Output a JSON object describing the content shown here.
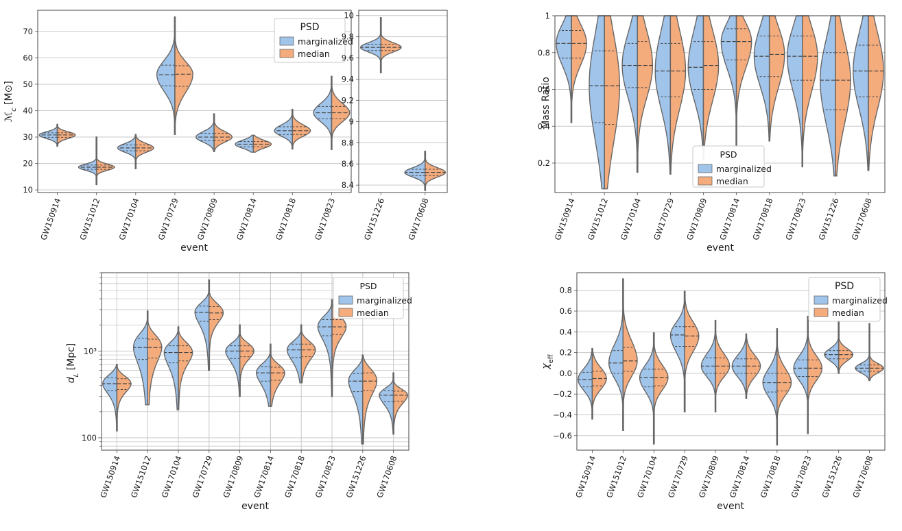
{
  "legend": {
    "title": "PSD",
    "entries": [
      "marginalized",
      "median"
    ]
  },
  "colors": {
    "marginalized": "#a1c4eb",
    "median": "#f5ac7d",
    "outline": "#666666",
    "grid": "#c8c8c8"
  },
  "events": [
    "GW150914",
    "GW151012",
    "GW170104",
    "GW170729",
    "GW170809",
    "GW170814",
    "GW170818",
    "GW170823",
    "GW151226",
    "GW170608"
  ],
  "chart_data": [
    {
      "id": "chirp-mass-heavy",
      "type": "violin",
      "ylabel": "Mc [M⊙]",
      "ylabel_main": "ℳ",
      "ylabel_sub": "c",
      "ylabel_unit": " [M⊙]",
      "ylim": [
        9,
        78
      ],
      "yticks": [
        10,
        20,
        30,
        40,
        50,
        60,
        70
      ],
      "categories": [
        "GW150914",
        "GW151012",
        "GW170104",
        "GW170729",
        "GW170809",
        "GW170814",
        "GW170818",
        "GW170823"
      ],
      "xlabel": "event",
      "series": [
        {
          "name": "marginalized",
          "median": [
            30.8,
            18.6,
            25.9,
            53.6,
            30.0,
            27.3,
            32.4,
            39.2
          ],
          "q25": [
            29.9,
            17.8,
            24.8,
            49.4,
            28.7,
            26.3,
            31.0,
            36.9
          ],
          "q75": [
            31.6,
            19.4,
            27.0,
            57.2,
            31.4,
            28.3,
            33.9,
            41.6
          ]
        },
        {
          "name": "median",
          "median": [
            30.8,
            18.6,
            25.9,
            53.8,
            30.0,
            27.3,
            32.4,
            39.2
          ],
          "q25": [
            29.9,
            17.8,
            24.8,
            49.2,
            28.7,
            26.3,
            31.0,
            36.9
          ],
          "q75": [
            31.6,
            19.4,
            27.0,
            57.0,
            31.4,
            28.3,
            33.9,
            41.6
          ]
        }
      ],
      "range": [
        [
          26.5,
          34.8
        ],
        [
          12.0,
          30.0
        ],
        [
          18.0,
          31.0
        ],
        [
          31.0,
          75.5
        ],
        [
          24.5,
          38.8
        ],
        [
          24.3,
          30.7
        ],
        [
          25.5,
          40.5
        ],
        [
          25.3,
          53.0
        ]
      ],
      "legend_position": "top-right"
    },
    {
      "id": "chirp-mass-light",
      "type": "violin",
      "ylim": [
        8.33,
        10.05
      ],
      "yticks": [
        8.4,
        8.6,
        8.8,
        9.0,
        9.2,
        9.4,
        9.6,
        9.8,
        10.0
      ],
      "categories": [
        "GW151226",
        "GW170608"
      ],
      "series": [
        {
          "name": "marginalized",
          "median": [
            9.7,
            8.52
          ],
          "q25": [
            9.67,
            8.49
          ],
          "q75": [
            9.73,
            8.55
          ]
        },
        {
          "name": "median",
          "median": [
            9.7,
            8.52
          ],
          "q25": [
            9.67,
            8.49
          ],
          "q75": [
            9.73,
            8.55
          ]
        }
      ],
      "range": [
        [
          9.46,
          9.98
        ],
        [
          8.35,
          8.72
        ]
      ]
    },
    {
      "id": "mass-ratio",
      "type": "violin",
      "ylabel": "Mass Ratio",
      "xlabel": "event",
      "ylim": [
        0.04,
        1.0
      ],
      "yticks": [
        0.2,
        0.4,
        0.6,
        0.8,
        1.0
      ],
      "categories": [
        "GW150914",
        "GW151012",
        "GW170104",
        "GW170729",
        "GW170809",
        "GW170814",
        "GW170818",
        "GW170823",
        "GW151226",
        "GW170608"
      ],
      "series": [
        {
          "name": "marginalized",
          "median": [
            0.85,
            0.62,
            0.73,
            0.7,
            0.72,
            0.86,
            0.78,
            0.78,
            0.65,
            0.7
          ],
          "q25": [
            0.77,
            0.42,
            0.61,
            0.56,
            0.6,
            0.76,
            0.67,
            0.65,
            0.49,
            0.56
          ],
          "q75": [
            0.92,
            0.81,
            0.85,
            0.85,
            0.86,
            0.93,
            0.89,
            0.89,
            0.8,
            0.84
          ]
        },
        {
          "name": "median",
          "median": [
            0.85,
            0.62,
            0.73,
            0.7,
            0.73,
            0.86,
            0.79,
            0.78,
            0.65,
            0.7
          ],
          "q25": [
            0.77,
            0.41,
            0.61,
            0.56,
            0.6,
            0.76,
            0.67,
            0.65,
            0.49,
            0.56
          ],
          "q75": [
            0.92,
            0.81,
            0.86,
            0.85,
            0.86,
            0.93,
            0.89,
            0.89,
            0.8,
            0.84
          ]
        }
      ],
      "range": [
        [
          0.42,
          1.0
        ],
        [
          0.06,
          1.0
        ],
        [
          0.15,
          1.0
        ],
        [
          0.14,
          1.0
        ],
        [
          0.22,
          1.0
        ],
        [
          0.29,
          1.0
        ],
        [
          0.32,
          1.0
        ],
        [
          0.18,
          1.0
        ],
        [
          0.13,
          1.0
        ],
        [
          0.16,
          1.0
        ]
      ],
      "legend_position": "bottom-center"
    },
    {
      "id": "luminosity-distance",
      "type": "violin",
      "ylabel": "dL [Mpc]",
      "ylabel_main": "d",
      "ylabel_sub": "L",
      "ylabel_unit": " [Mpc]",
      "xlabel": "event",
      "yscale": "log",
      "ylim": [
        72,
        8000
      ],
      "yticks": [
        100,
        1000
      ],
      "ytick_labels": [
        "100",
        "10³"
      ],
      "categories": [
        "GW150914",
        "GW151012",
        "GW170104",
        "GW170729",
        "GW170809",
        "GW170814",
        "GW170818",
        "GW170823",
        "GW151226",
        "GW170608"
      ],
      "series": [
        {
          "name": "marginalized",
          "median": [
            420,
            1100,
            960,
            2800,
            1000,
            560,
            1030,
            1900,
            450,
            310
          ],
          "q25": [
            350,
            800,
            730,
            2200,
            820,
            450,
            840,
            1500,
            340,
            260
          ],
          "q75": [
            490,
            1400,
            1150,
            3300,
            1150,
            660,
            1200,
            2300,
            550,
            350
          ]
        },
        {
          "name": "median",
          "median": [
            420,
            1100,
            960,
            2750,
            1000,
            560,
            1030,
            1900,
            450,
            310
          ],
          "q25": [
            360,
            830,
            770,
            2300,
            860,
            460,
            860,
            1550,
            350,
            265
          ],
          "q75": [
            480,
            1370,
            1150,
            3250,
            1150,
            650,
            1200,
            2300,
            560,
            345
          ]
        }
      ],
      "range": [
        [
          120,
          700
        ],
        [
          240,
          2900
        ],
        [
          210,
          1900
        ],
        [
          600,
          6600
        ],
        [
          300,
          2000
        ],
        [
          230,
          1200
        ],
        [
          430,
          2000
        ],
        [
          300,
          3900
        ],
        [
          85,
          900
        ],
        [
          110,
          560
        ]
      ],
      "legend_position": "top-right"
    },
    {
      "id": "effective-spin",
      "type": "violin",
      "ylabel": "χeff",
      "ylabel_main": "χ",
      "ylabel_sub": "eff",
      "xlabel": "event",
      "ylim": [
        -0.74,
        0.97
      ],
      "yticks": [
        -0.6,
        -0.4,
        -0.2,
        0.0,
        0.2,
        0.4,
        0.6,
        0.8
      ],
      "ytick_labels": [
        "−0.6",
        "−0.4",
        "−0.2",
        "0.0",
        "0.2",
        "0.4",
        "0.6",
        "0.8"
      ],
      "categories": [
        "GW150914",
        "GW151012",
        "GW170104",
        "GW170729",
        "GW170809",
        "GW170814",
        "GW170818",
        "GW170823",
        "GW151226",
        "GW170608"
      ],
      "series": [
        {
          "name": "marginalized",
          "median": [
            -0.06,
            0.1,
            -0.04,
            0.37,
            0.07,
            0.07,
            -0.09,
            0.05,
            0.18,
            0.05
          ],
          "q25": [
            -0.13,
            0.0,
            -0.13,
            0.26,
            0.0,
            0.0,
            -0.18,
            -0.03,
            0.14,
            0.02
          ],
          "q75": [
            0.01,
            0.22,
            0.04,
            0.45,
            0.15,
            0.14,
            0.0,
            0.13,
            0.22,
            0.08
          ]
        },
        {
          "name": "median",
          "median": [
            -0.05,
            0.12,
            -0.04,
            0.36,
            0.07,
            0.07,
            -0.09,
            0.05,
            0.18,
            0.05
          ],
          "q25": [
            -0.12,
            0.02,
            -0.12,
            0.26,
            0.0,
            0.0,
            -0.17,
            -0.03,
            0.14,
            0.02
          ],
          "q75": [
            0.02,
            0.25,
            0.04,
            0.45,
            0.15,
            0.14,
            0.0,
            0.13,
            0.22,
            0.08
          ]
        }
      ],
      "range": [
        [
          -0.44,
          0.24
        ],
        [
          -0.55,
          0.91
        ],
        [
          -0.68,
          0.39
        ],
        [
          -0.37,
          0.79
        ],
        [
          -0.37,
          0.51
        ],
        [
          -0.24,
          0.38
        ],
        [
          -0.69,
          0.43
        ],
        [
          -0.58,
          0.55
        ],
        [
          0.0,
          0.51
        ],
        [
          -0.07,
          0.48
        ]
      ],
      "legend_position": "top-right"
    }
  ]
}
